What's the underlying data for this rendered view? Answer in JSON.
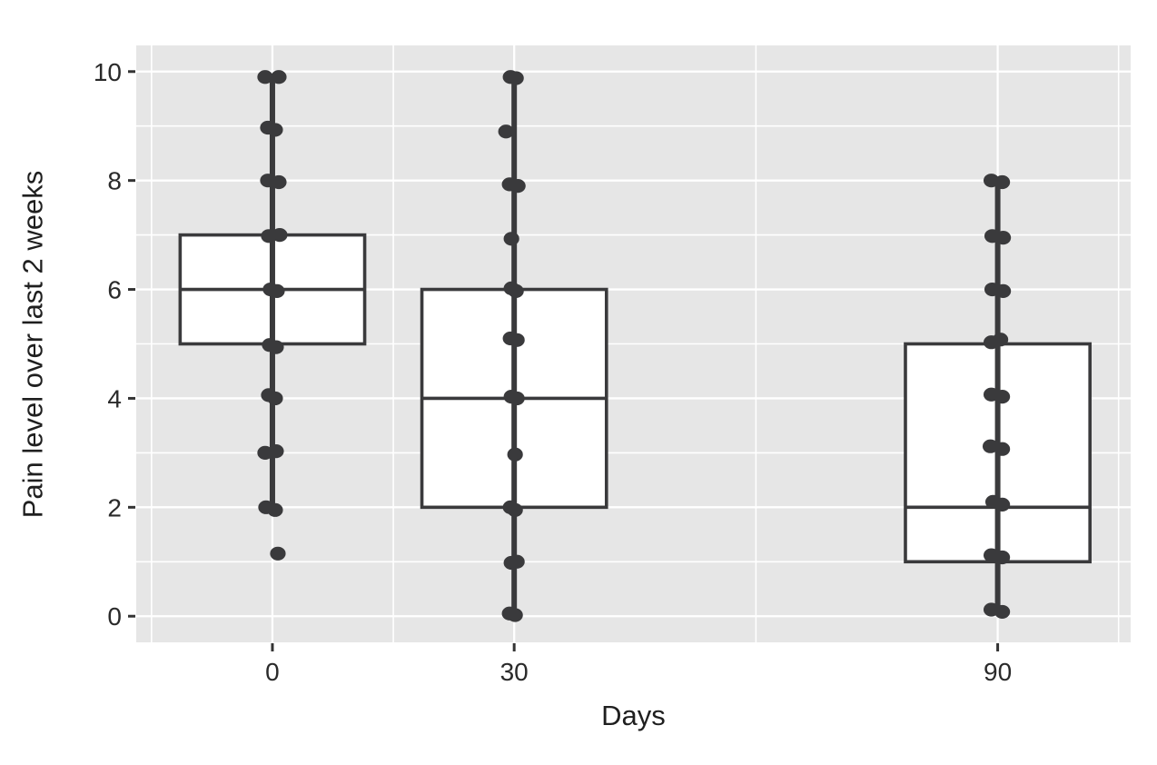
{
  "chart_data": {
    "type": "boxplot",
    "title": "",
    "xlabel": "Days",
    "ylabel": "Pain level over last 2 weeks",
    "x_ticks": [
      0,
      30,
      90
    ],
    "x_minor_ticks": [
      -15,
      15,
      60,
      105
    ],
    "y_ticks": [
      0,
      2,
      4,
      6,
      8,
      10
    ],
    "y_minor_ticks": [
      1,
      3,
      5,
      7,
      9
    ],
    "xlim": [
      -16.9,
      106.5
    ],
    "ylim": [
      -0.48,
      10.48
    ],
    "grid": "on",
    "legend": "none",
    "box_width_days": 22.9,
    "colors": {
      "panel_bg": "#e6e6e6",
      "grid": "#ffffff",
      "stroke": "#3a3a3c",
      "box_fill": "#ffffff",
      "tick_mark": "#333333",
      "tick_label": "#2a2a2a"
    },
    "groups": [
      {
        "day": 0,
        "label": "0",
        "q1": 5,
        "median": 6,
        "q3": 7,
        "whisker_low": 1.95,
        "whisker_high": 9.9,
        "points": [
          [
            -8,
            9.9
          ],
          [
            7,
            9.9
          ],
          [
            -5,
            8.97
          ],
          [
            3,
            8.93
          ],
          [
            -5,
            8.0
          ],
          [
            7,
            7.97
          ],
          [
            -4,
            6.98
          ],
          [
            8,
            7.0
          ],
          [
            -2,
            6.0
          ],
          [
            5,
            5.97
          ],
          [
            -3,
            4.98
          ],
          [
            4,
            4.94
          ],
          [
            -4,
            4.06
          ],
          [
            3,
            4.0
          ],
          [
            -8,
            3.0
          ],
          [
            4,
            3.03
          ],
          [
            -7,
            2.0
          ],
          [
            3,
            1.95
          ],
          [
            6,
            1.15
          ]
        ]
      },
      {
        "day": 30,
        "label": "30",
        "q1": 2,
        "median": 4,
        "q3": 6,
        "whisker_low": 0.02,
        "whisker_high": 9.9,
        "points": [
          [
            -4,
            9.9
          ],
          [
            2,
            9.88
          ],
          [
            -9,
            8.9
          ],
          [
            -5,
            7.93
          ],
          [
            4,
            7.9
          ],
          [
            -3,
            6.93
          ],
          [
            -3,
            6.02
          ],
          [
            2,
            5.97
          ],
          [
            -4,
            5.1
          ],
          [
            3,
            5.07
          ],
          [
            -3,
            4.03
          ],
          [
            3,
            4.0
          ],
          [
            1,
            2.97
          ],
          [
            -4,
            2.0
          ],
          [
            1,
            1.95
          ],
          [
            -3,
            0.98
          ],
          [
            3,
            1.0
          ],
          [
            -5,
            0.05
          ],
          [
            1,
            0.02
          ]
        ]
      },
      {
        "day": 90,
        "label": "90",
        "q1": 1,
        "median": 2,
        "q3": 5,
        "whisker_low": 0.08,
        "whisker_high": 8.0,
        "points": [
          [
            -7,
            8.0
          ],
          [
            5,
            7.97
          ],
          [
            -6,
            6.98
          ],
          [
            6,
            6.95
          ],
          [
            -6,
            6.0
          ],
          [
            6,
            5.97
          ],
          [
            -7,
            5.03
          ],
          [
            3,
            5.08
          ],
          [
            -7,
            4.07
          ],
          [
            5,
            4.03
          ],
          [
            -8,
            3.12
          ],
          [
            5,
            3.07
          ],
          [
            -5,
            2.1
          ],
          [
            5,
            2.05
          ],
          [
            -7,
            1.12
          ],
          [
            5,
            1.08
          ],
          [
            -7,
            0.12
          ],
          [
            5,
            0.08
          ]
        ]
      }
    ]
  }
}
